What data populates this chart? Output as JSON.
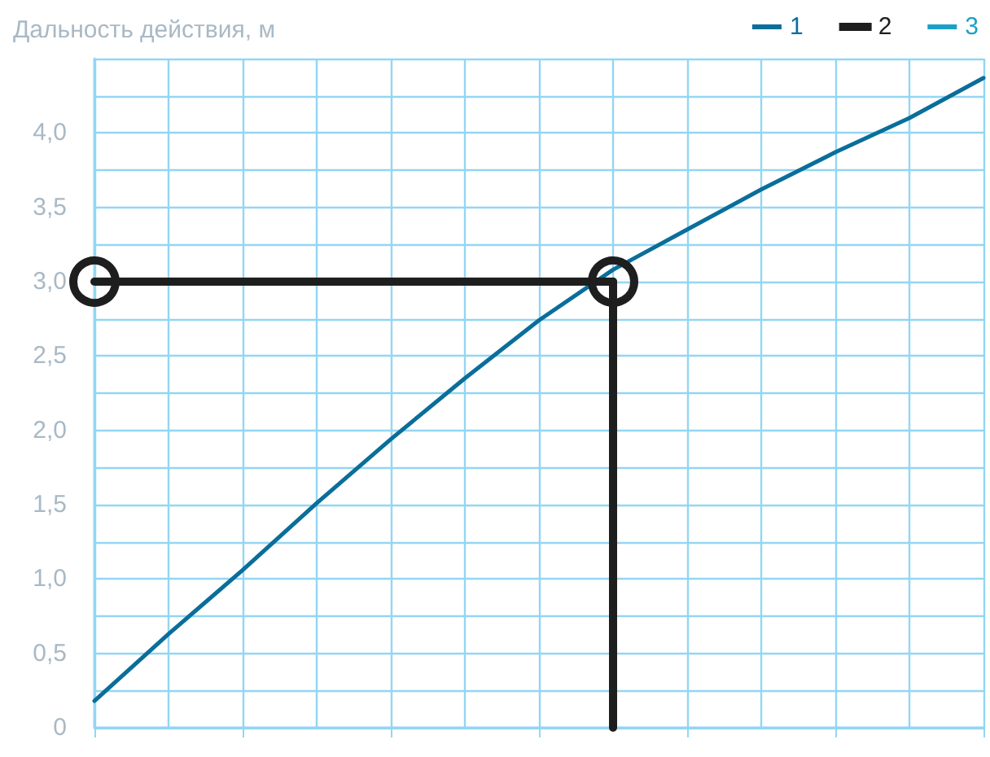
{
  "chart_data": {
    "type": "line",
    "ylabel": "Дальность действия, м",
    "categories": [
      null,
      null,
      null,
      null,
      null,
      null,
      null,
      null,
      null,
      null,
      null,
      null,
      null
    ],
    "ylim": [
      0,
      4.5
    ],
    "yticks": [
      0,
      {
        "value": 0.25,
        "label": null
      },
      {
        "value": 0.5,
        "label": "0,5"
      },
      {
        "value": 0.75,
        "label": null
      },
      {
        "value": 1,
        "label": "1,0"
      },
      {
        "value": 1.25,
        "label": null
      },
      {
        "value": 1.5,
        "label": "1,5"
      },
      {
        "value": 1.75,
        "label": null
      },
      {
        "value": 2,
        "label": "2,0"
      },
      {
        "value": 2.25,
        "label": null
      },
      {
        "value": 2.5,
        "label": "2,5"
      },
      {
        "value": 2.75,
        "label": null
      },
      {
        "value": 3,
        "label": "3,0"
      },
      {
        "value": 3.25,
        "label": null
      },
      {
        "value": 3.5,
        "label": "3,5"
      },
      {
        "value": 3.75,
        "label": null
      },
      {
        "value": 4,
        "label": "4,0"
      },
      {
        "value": 4.25,
        "label": null
      },
      {
        "value": 4.5,
        "label": null
      }
    ],
    "series": [
      {
        "name": "1",
        "color": "#0a6e9a",
        "marker": "none",
        "values": [
          0.18,
          0.63,
          1.06,
          1.51,
          1.94,
          2.35,
          2.74,
          3.08,
          3.35,
          3.62,
          3.87,
          4.1,
          4.37
        ]
      },
      {
        "name": "2",
        "color": "#1e1e1e",
        "marker": "circle",
        "values": [
          3,
          null,
          null,
          null,
          null,
          null,
          null,
          3,
          null,
          null,
          null,
          null,
          null
        ]
      },
      {
        "name": "3",
        "color": "#1aa0c8",
        "values": [
          null,
          null,
          null,
          null,
          null,
          null,
          null,
          null,
          null,
          null,
          null,
          null,
          null
        ]
      }
    ],
    "grid": true,
    "legend": "top right"
  }
}
